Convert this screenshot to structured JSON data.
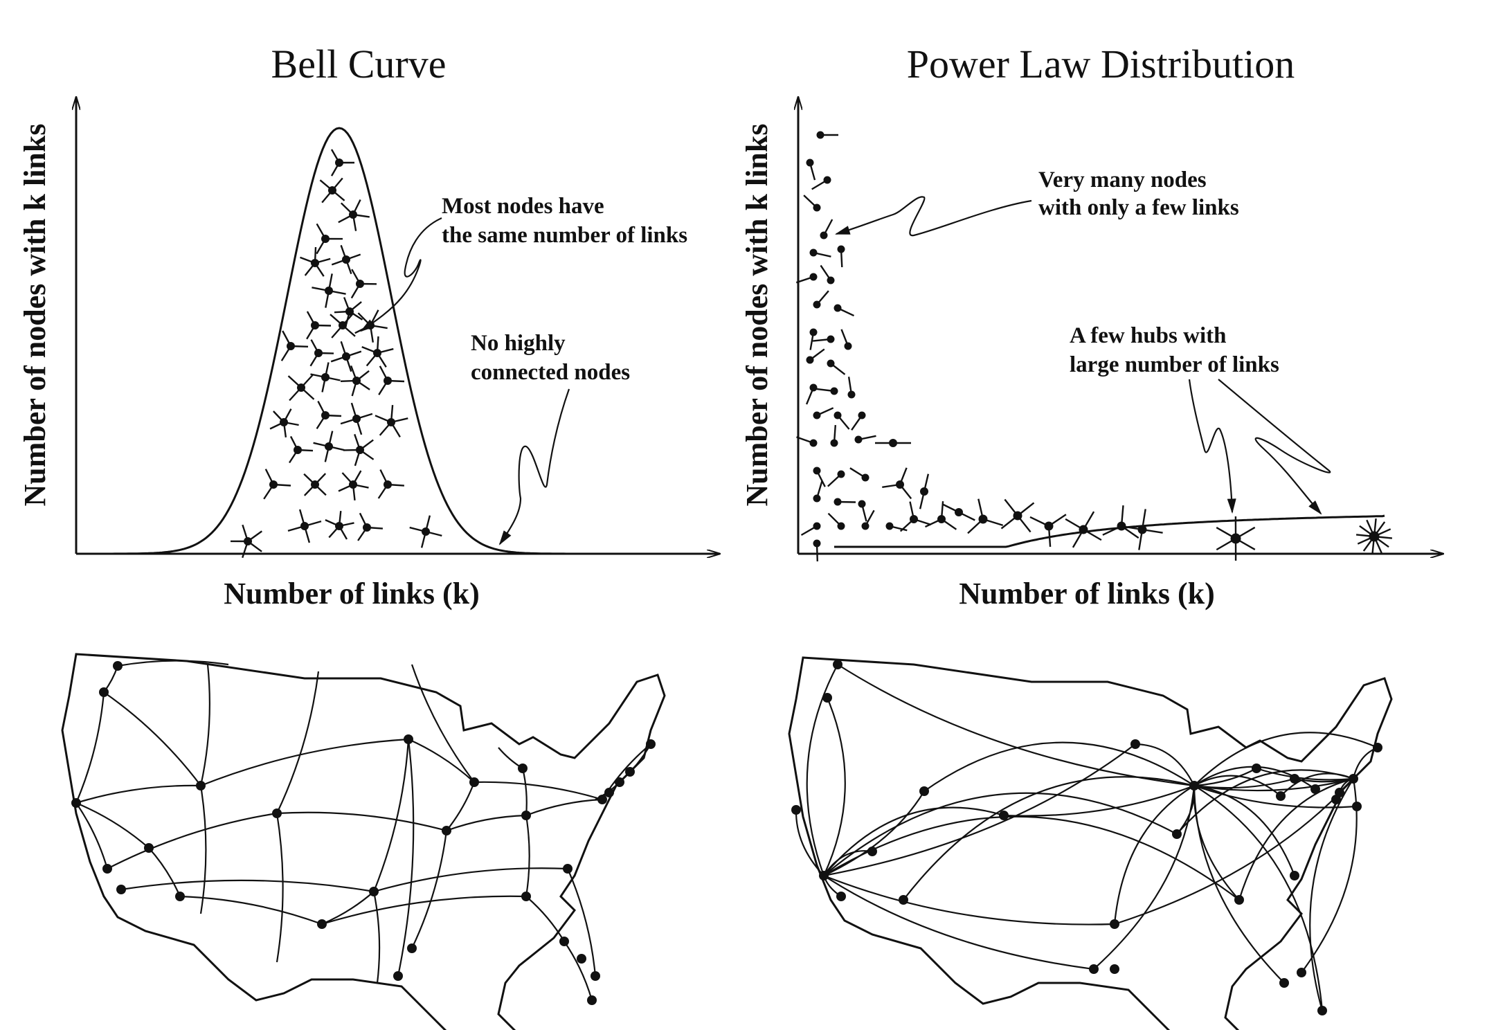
{
  "panels": {
    "left": {
      "title": "Bell Curve",
      "y_label": "Number of nodes with k links",
      "x_label": "Number of links (k)",
      "annotations": [
        [
          "Most nodes have",
          "the same number of links"
        ],
        [
          "No highly",
          "connected nodes"
        ]
      ]
    },
    "right": {
      "title": "Power Law Distribution",
      "y_label": "Number of nodes with k links",
      "x_label": "Number of links (k)",
      "annotations": [
        [
          "Very many nodes",
          "with only a few links"
        ],
        [
          "A few hubs with",
          "large number of links"
        ]
      ]
    }
  },
  "maps": {
    "left": {
      "network": "random",
      "hubs": false
    },
    "right": {
      "network": "scale-free",
      "hubs": true
    }
  }
}
